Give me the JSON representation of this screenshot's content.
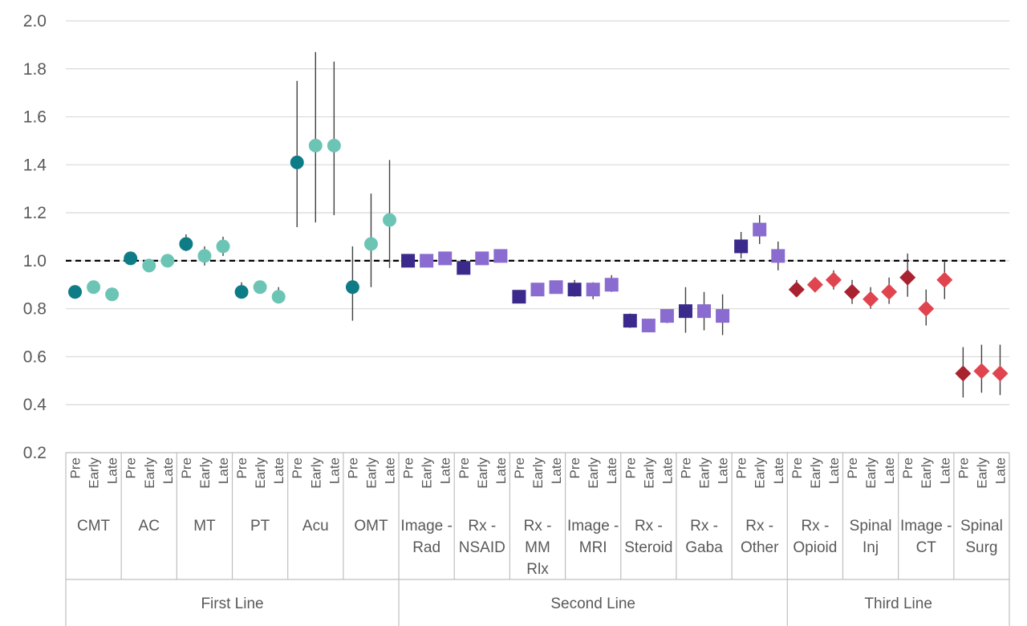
{
  "chart_data": {
    "type": "scatter",
    "title": "",
    "xlabel": "",
    "ylabel": "",
    "ylim": [
      0.2,
      2.0
    ],
    "yticks": [
      "0.2",
      "0.4",
      "0.6",
      "0.8",
      "1.0",
      "1.2",
      "1.4",
      "1.6",
      "1.8",
      "2.0"
    ],
    "reference_line": 1.0,
    "grid": "horizontal",
    "timepoints": [
      "Pre",
      "Early",
      "Late"
    ],
    "groups": [
      {
        "name": "First Line",
        "marker": "circle",
        "pre_color": "#0e7c86",
        "post_color": "#6cc5b4",
        "treatments": [
          {
            "label": "CMT",
            "points": [
              {
                "y": 0.87,
                "lo": 0.87,
                "hi": 0.87
              },
              {
                "y": 0.89,
                "lo": 0.89,
                "hi": 0.89
              },
              {
                "y": 0.86,
                "lo": 0.86,
                "hi": 0.86
              }
            ]
          },
          {
            "label": "AC",
            "points": [
              {
                "y": 1.01,
                "lo": 1.01,
                "hi": 1.01
              },
              {
                "y": 0.98,
                "lo": 0.96,
                "hi": 1.0
              },
              {
                "y": 1.0,
                "lo": 0.99,
                "hi": 1.01
              }
            ]
          },
          {
            "label": "MT",
            "points": [
              {
                "y": 1.07,
                "lo": 1.04,
                "hi": 1.11
              },
              {
                "y": 1.02,
                "lo": 0.98,
                "hi": 1.06
              },
              {
                "y": 1.06,
                "lo": 1.02,
                "hi": 1.1
              }
            ]
          },
          {
            "label": "PT",
            "points": [
              {
                "y": 0.87,
                "lo": 0.85,
                "hi": 0.91
              },
              {
                "y": 0.89,
                "lo": 0.87,
                "hi": 0.91
              },
              {
                "y": 0.85,
                "lo": 0.83,
                "hi": 0.89
              }
            ]
          },
          {
            "label": "Acu",
            "points": [
              {
                "y": 1.41,
                "lo": 1.14,
                "hi": 1.75
              },
              {
                "y": 1.48,
                "lo": 1.16,
                "hi": 1.87
              },
              {
                "y": 1.48,
                "lo": 1.19,
                "hi": 1.83
              }
            ]
          },
          {
            "label": "OMT",
            "points": [
              {
                "y": 0.89,
                "lo": 0.75,
                "hi": 1.06
              },
              {
                "y": 1.07,
                "lo": 0.89,
                "hi": 1.28
              },
              {
                "y": 1.17,
                "lo": 0.97,
                "hi": 1.42
              }
            ]
          }
        ]
      },
      {
        "name": "Second Line",
        "marker": "square",
        "pre_color": "#3b2a8c",
        "post_color": "#8a6bcf",
        "treatments": [
          {
            "label": "Image - Rad",
            "points": [
              {
                "y": 1.0,
                "lo": 0.99,
                "hi": 1.01
              },
              {
                "y": 1.0,
                "lo": 0.99,
                "hi": 1.01
              },
              {
                "y": 1.01,
                "lo": 1.0,
                "hi": 1.02
              }
            ]
          },
          {
            "label": "Rx - NSAID",
            "points": [
              {
                "y": 0.97,
                "lo": 0.96,
                "hi": 0.98
              },
              {
                "y": 1.01,
                "lo": 1.0,
                "hi": 1.02
              },
              {
                "y": 1.02,
                "lo": 1.01,
                "hi": 1.03
              }
            ]
          },
          {
            "label": "Rx - MM Rlx",
            "points": [
              {
                "y": 0.85,
                "lo": 0.84,
                "hi": 0.86
              },
              {
                "y": 0.88,
                "lo": 0.87,
                "hi": 0.89
              },
              {
                "y": 0.89,
                "lo": 0.88,
                "hi": 0.9
              }
            ]
          },
          {
            "label": "Image - MRI",
            "points": [
              {
                "y": 0.88,
                "lo": 0.85,
                "hi": 0.92
              },
              {
                "y": 0.88,
                "lo": 0.84,
                "hi": 0.91
              },
              {
                "y": 0.9,
                "lo": 0.87,
                "hi": 0.94
              }
            ]
          },
          {
            "label": "Rx - Steroid",
            "points": [
              {
                "y": 0.75,
                "lo": 0.72,
                "hi": 0.78
              },
              {
                "y": 0.73,
                "lo": 0.71,
                "hi": 0.75
              },
              {
                "y": 0.77,
                "lo": 0.74,
                "hi": 0.79
              }
            ]
          },
          {
            "label": "Rx - Gaba",
            "points": [
              {
                "y": 0.79,
                "lo": 0.7,
                "hi": 0.89
              },
              {
                "y": 0.79,
                "lo": 0.71,
                "hi": 0.87
              },
              {
                "y": 0.77,
                "lo": 0.69,
                "hi": 0.86
              }
            ]
          },
          {
            "label": "Rx - Other",
            "points": [
              {
                "y": 1.06,
                "lo": 1.01,
                "hi": 1.12
              },
              {
                "y": 1.13,
                "lo": 1.07,
                "hi": 1.19
              },
              {
                "y": 1.02,
                "lo": 0.96,
                "hi": 1.08
              }
            ]
          }
        ]
      },
      {
        "name": "Third Line",
        "marker": "diamond",
        "pre_color": "#a8232f",
        "post_color": "#e0454f",
        "treatments": [
          {
            "label": "Rx - Opioid",
            "points": [
              {
                "y": 0.88,
                "lo": 0.85,
                "hi": 0.92
              },
              {
                "y": 0.9,
                "lo": 0.87,
                "hi": 0.93
              },
              {
                "y": 0.92,
                "lo": 0.88,
                "hi": 0.96
              }
            ]
          },
          {
            "label": "Spinal Inj",
            "points": [
              {
                "y": 0.87,
                "lo": 0.82,
                "hi": 0.92
              },
              {
                "y": 0.84,
                "lo": 0.8,
                "hi": 0.89
              },
              {
                "y": 0.87,
                "lo": 0.82,
                "hi": 0.93
              }
            ]
          },
          {
            "label": "Image - CT",
            "points": [
              {
                "y": 0.93,
                "lo": 0.85,
                "hi": 1.03
              },
              {
                "y": 0.8,
                "lo": 0.73,
                "hi": 0.88
              },
              {
                "y": 0.92,
                "lo": 0.84,
                "hi": 1.0
              }
            ]
          },
          {
            "label": "Spinal Surg",
            "points": [
              {
                "y": 0.53,
                "lo": 0.43,
                "hi": 0.64
              },
              {
                "y": 0.54,
                "lo": 0.45,
                "hi": 0.65
              },
              {
                "y": 0.53,
                "lo": 0.44,
                "hi": 0.65
              }
            ]
          }
        ]
      }
    ]
  }
}
